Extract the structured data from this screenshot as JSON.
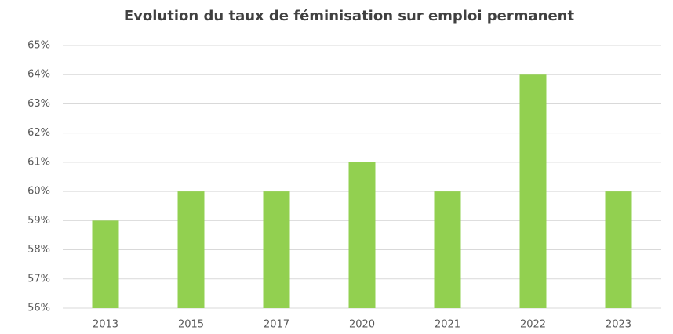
{
  "chart_data": {
    "type": "bar",
    "title": "Evolution du taux de féminisation sur emploi permanent",
    "categories": [
      "2013",
      "2015",
      "2017",
      "2020",
      "2021",
      "2022",
      "2023"
    ],
    "values": [
      59,
      60,
      60,
      61,
      60,
      64,
      60
    ],
    "color": "#92d050",
    "ylim": [
      56,
      65
    ],
    "yticks": [
      {
        "value": 56,
        "label": "56%"
      },
      {
        "value": 57,
        "label": "57%"
      },
      {
        "value": 58,
        "label": "58%"
      },
      {
        "value": 59,
        "label": "59%"
      },
      {
        "value": 60,
        "label": "60%"
      },
      {
        "value": 61,
        "label": "61%"
      },
      {
        "value": 62,
        "label": "62%"
      },
      {
        "value": 63,
        "label": "63%"
      },
      {
        "value": 64,
        "label": "64%"
      },
      {
        "value": 65,
        "label": "65%"
      }
    ],
    "grid": true
  }
}
